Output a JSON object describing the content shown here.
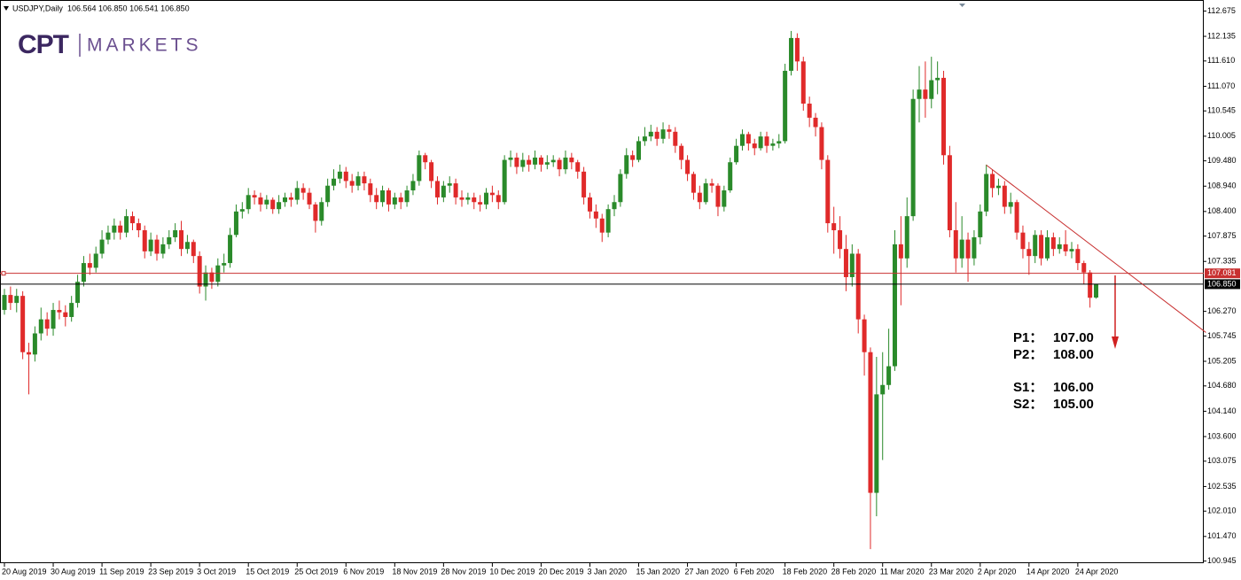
{
  "chart_data": {
    "type": "candlestick",
    "header": {
      "symbol": "USDJPY,Daily",
      "quote": "106.564 106.850 106.541 106.850"
    },
    "logo": {
      "mark": "CPT",
      "text": "MARKETS"
    },
    "up_color": "#2a8a2a",
    "down_color": "#e02a2a",
    "categories": [
      "20 Aug 2019",
      null,
      null,
      null,
      null,
      null,
      null,
      null,
      "30 Aug 2019",
      null,
      null,
      null,
      null,
      null,
      null,
      null,
      "11 Sep 2019",
      null,
      null,
      null,
      null,
      null,
      null,
      null,
      "23 Sep 2019",
      null,
      null,
      null,
      null,
      null,
      null,
      null,
      "3 Oct 2019",
      null,
      null,
      null,
      null,
      null,
      null,
      null,
      "15 Oct 2019",
      null,
      null,
      null,
      null,
      null,
      null,
      null,
      "25 Oct 2019",
      null,
      null,
      null,
      null,
      null,
      null,
      null,
      "6 Nov 2019",
      null,
      null,
      null,
      null,
      null,
      null,
      null,
      "18 Nov 2019",
      null,
      null,
      null,
      null,
      null,
      null,
      null,
      "28 Nov 2019",
      null,
      null,
      null,
      null,
      null,
      null,
      null,
      "10 Dec 2019",
      null,
      null,
      null,
      null,
      null,
      null,
      null,
      "20 Dec 2019",
      null,
      null,
      null,
      null,
      null,
      null,
      null,
      "3 Jan 2020",
      null,
      null,
      null,
      null,
      null,
      null,
      null,
      "15 Jan 2020",
      null,
      null,
      null,
      null,
      null,
      null,
      null,
      "27 Jan 2020",
      null,
      null,
      null,
      null,
      null,
      null,
      null,
      "6 Feb 2020",
      null,
      null,
      null,
      null,
      null,
      null,
      null,
      "18 Feb 2020",
      null,
      null,
      null,
      null,
      null,
      null,
      null,
      "28 Feb 2020",
      null,
      null,
      null,
      null,
      null,
      null,
      null,
      "11 Mar 2020",
      null,
      null,
      null,
      null,
      null,
      null,
      null,
      "23 Mar 2020",
      null,
      null,
      null,
      null,
      null,
      null,
      null,
      "2 Apr 2020",
      null,
      null,
      null,
      null,
      null,
      null,
      null,
      "14 Apr 2020",
      null,
      null,
      null,
      null,
      null,
      null,
      null,
      "24 Apr 2020",
      null,
      null,
      null
    ],
    "open": [
      106.3,
      106.62,
      106.45,
      106.6,
      105.4,
      105.35,
      105.8,
      106.1,
      105.9,
      106.3,
      106.25,
      106.15,
      106.45,
      106.9,
      107.3,
      107.2,
      107.5,
      107.8,
      107.95,
      108.1,
      107.95,
      108.3,
      108.15,
      108.0,
      107.55,
      107.8,
      107.5,
      107.7,
      107.85,
      108.0,
      107.6,
      107.75,
      107.45,
      106.8,
      107.1,
      106.9,
      107.25,
      107.3,
      107.9,
      108.4,
      108.45,
      108.75,
      108.7,
      108.55,
      108.65,
      108.45,
      108.6,
      108.7,
      108.65,
      108.9,
      108.8,
      108.55,
      108.2,
      108.6,
      108.95,
      109.1,
      109.25,
      109.05,
      108.95,
      109.15,
      109.0,
      108.75,
      108.6,
      108.85,
      108.55,
      108.7,
      108.6,
      108.85,
      109.05,
      109.6,
      109.45,
      109.05,
      108.7,
      108.95,
      109.0,
      108.7,
      108.65,
      108.7,
      108.6,
      108.55,
      108.8,
      108.75,
      108.6,
      109.5,
      109.55,
      109.35,
      109.5,
      109.4,
      109.55,
      109.4,
      109.45,
      109.5,
      109.3,
      109.55,
      109.45,
      109.25,
      108.7,
      108.4,
      108.25,
      107.95,
      108.45,
      108.6,
      109.2,
      109.6,
      109.5,
      109.9,
      110.0,
      110.1,
      109.95,
      110.15,
      110.1,
      109.8,
      109.5,
      109.2,
      108.8,
      108.6,
      109.0,
      108.95,
      108.5,
      108.85,
      109.45,
      109.8,
      110.05,
      109.85,
      109.75,
      110.0,
      109.8,
      109.85,
      109.9,
      111.4,
      112.1,
      111.6,
      110.7,
      110.4,
      110.2,
      109.5,
      108.15,
      108.0,
      107.6,
      107.0,
      107.5,
      106.1,
      105.4,
      102.4,
      104.5,
      104.7,
      105.1,
      107.7,
      107.4,
      108.3,
      110.8,
      111.0,
      110.8,
      111.2,
      111.25,
      109.6,
      108.0,
      107.4,
      107.8,
      107.4,
      107.85,
      108.4,
      109.2,
      108.9,
      108.95,
      108.5,
      108.6,
      107.95,
      107.6,
      107.45,
      107.9,
      107.4,
      107.85,
      107.6,
      107.7,
      107.55,
      107.6,
      107.3,
      107.1,
      106.564
    ],
    "high": [
      106.75,
      106.8,
      106.75,
      106.7,
      105.6,
      105.95,
      106.35,
      106.25,
      106.45,
      106.5,
      106.4,
      106.6,
      107.05,
      107.45,
      107.5,
      107.65,
      108.0,
      108.1,
      108.25,
      108.2,
      108.45,
      108.4,
      108.25,
      108.1,
      107.95,
      107.9,
      107.85,
      108.0,
      108.15,
      108.2,
      107.9,
      107.8,
      107.55,
      107.25,
      107.2,
      107.4,
      107.5,
      108.05,
      108.55,
      108.6,
      108.9,
      108.85,
      108.8,
      108.75,
      108.7,
      108.75,
      108.8,
      108.8,
      109.05,
      109.0,
      108.9,
      108.6,
      108.7,
      109.1,
      109.3,
      109.4,
      109.35,
      109.2,
      109.25,
      109.25,
      109.1,
      108.9,
      108.95,
      108.9,
      108.8,
      108.8,
      108.95,
      109.2,
      109.7,
      109.65,
      109.5,
      109.15,
      109.05,
      109.15,
      109.1,
      108.85,
      108.8,
      108.8,
      108.75,
      108.9,
      108.95,
      108.85,
      109.6,
      109.7,
      109.65,
      109.65,
      109.6,
      109.7,
      109.6,
      109.6,
      109.6,
      109.55,
      109.7,
      109.65,
      109.5,
      109.35,
      108.8,
      108.55,
      108.35,
      108.55,
      108.75,
      109.3,
      109.75,
      109.7,
      110.0,
      110.2,
      110.25,
      110.2,
      110.3,
      110.25,
      110.2,
      109.85,
      109.6,
      109.25,
      108.95,
      109.1,
      109.1,
      109.0,
      108.95,
      109.55,
      109.95,
      110.15,
      110.1,
      109.95,
      110.1,
      110.1,
      109.95,
      110.05,
      111.55,
      112.25,
      112.2,
      111.7,
      110.85,
      110.5,
      110.3,
      109.6,
      108.5,
      108.3,
      107.9,
      107.7,
      107.6,
      106.2,
      105.5,
      105.3,
      105.4,
      105.9,
      108.0,
      108.3,
      108.7,
      111.0,
      111.5,
      111.6,
      111.7,
      111.6,
      111.4,
      109.8,
      108.6,
      108.3,
      107.95,
      108.0,
      108.55,
      109.4,
      109.3,
      109.1,
      109.05,
      108.8,
      108.65,
      108.1,
      107.75,
      108.0,
      108.0,
      108.0,
      107.95,
      107.85,
      108.0,
      107.75,
      107.7,
      107.35,
      107.15,
      106.85
    ],
    "low": [
      106.2,
      106.3,
      106.25,
      105.25,
      104.5,
      105.2,
      105.65,
      105.75,
      105.75,
      106.1,
      105.95,
      106.05,
      106.35,
      106.8,
      107.05,
      107.1,
      107.4,
      107.7,
      107.8,
      107.8,
      107.85,
      108.0,
      107.85,
      107.4,
      107.45,
      107.35,
      107.4,
      107.6,
      107.75,
      107.45,
      107.5,
      107.3,
      106.65,
      106.5,
      106.75,
      106.8,
      107.1,
      107.2,
      107.85,
      108.25,
      108.35,
      108.55,
      108.4,
      108.45,
      108.35,
      108.35,
      108.5,
      108.5,
      108.55,
      108.65,
      108.45,
      107.95,
      108.1,
      108.5,
      108.85,
      109.0,
      108.9,
      108.8,
      108.85,
      108.85,
      108.6,
      108.45,
      108.5,
      108.4,
      108.45,
      108.45,
      108.5,
      108.75,
      108.95,
      109.3,
      108.9,
      108.55,
      108.6,
      108.8,
      108.55,
      108.5,
      108.55,
      108.45,
      108.4,
      108.45,
      108.6,
      108.45,
      108.55,
      109.35,
      109.2,
      109.25,
      109.25,
      109.3,
      109.25,
      109.3,
      109.35,
      109.15,
      109.2,
      109.3,
      109.1,
      108.55,
      108.25,
      108.05,
      107.75,
      107.85,
      108.3,
      108.5,
      109.1,
      109.35,
      109.45,
      109.8,
      109.9,
      109.8,
      109.85,
      109.95,
      109.65,
      109.3,
      109.05,
      108.65,
      108.45,
      108.55,
      108.8,
      108.3,
      108.4,
      108.8,
      109.4,
      109.7,
      109.7,
      109.6,
      109.7,
      109.65,
      109.7,
      109.75,
      109.85,
      111.3,
      111.4,
      110.55,
      110.2,
      110.0,
      109.3,
      107.95,
      107.5,
      107.4,
      106.7,
      106.8,
      105.8,
      104.9,
      101.2,
      101.9,
      103.1,
      104.6,
      105.0,
      106.4,
      107.2,
      108.2,
      110.3,
      110.4,
      110.6,
      110.9,
      109.4,
      107.85,
      107.1,
      107.2,
      106.9,
      107.25,
      107.7,
      108.3,
      108.7,
      108.75,
      108.35,
      108.35,
      107.8,
      107.4,
      107.05,
      107.3,
      107.25,
      107.35,
      107.45,
      107.5,
      107.45,
      107.4,
      107.15,
      106.85,
      106.35,
      106.541
    ],
    "close": [
      106.62,
      106.45,
      106.6,
      105.4,
      105.35,
      105.8,
      106.1,
      105.9,
      106.3,
      106.25,
      106.15,
      106.45,
      106.9,
      107.3,
      107.2,
      107.5,
      107.8,
      107.95,
      108.1,
      107.95,
      108.3,
      108.15,
      108.0,
      107.55,
      107.8,
      107.5,
      107.7,
      107.85,
      108.0,
      107.6,
      107.75,
      107.45,
      106.8,
      107.1,
      106.9,
      107.25,
      107.3,
      107.9,
      108.4,
      108.45,
      108.75,
      108.7,
      108.55,
      108.65,
      108.45,
      108.6,
      108.7,
      108.65,
      108.9,
      108.8,
      108.55,
      108.2,
      108.6,
      108.95,
      109.1,
      109.25,
      109.05,
      108.95,
      109.15,
      109.0,
      108.75,
      108.6,
      108.85,
      108.55,
      108.7,
      108.6,
      108.85,
      109.05,
      109.6,
      109.45,
      109.05,
      108.7,
      108.95,
      109.0,
      108.7,
      108.65,
      108.7,
      108.6,
      108.55,
      108.8,
      108.75,
      108.6,
      109.5,
      109.55,
      109.35,
      109.5,
      109.4,
      109.55,
      109.4,
      109.45,
      109.5,
      109.3,
      109.55,
      109.45,
      109.25,
      108.7,
      108.4,
      108.25,
      107.95,
      108.45,
      108.6,
      109.2,
      109.6,
      109.5,
      109.9,
      110.0,
      110.1,
      109.95,
      110.15,
      110.1,
      109.8,
      109.5,
      109.2,
      108.8,
      108.6,
      109.0,
      108.95,
      108.5,
      108.85,
      109.45,
      109.8,
      110.05,
      109.85,
      109.75,
      110.0,
      109.8,
      109.85,
      109.9,
      111.4,
      112.1,
      111.6,
      110.7,
      110.4,
      110.2,
      109.5,
      108.15,
      108.0,
      107.6,
      107.0,
      107.5,
      106.1,
      105.4,
      102.4,
      104.5,
      104.7,
      105.1,
      107.7,
      107.4,
      108.3,
      110.8,
      111.0,
      110.8,
      111.2,
      111.25,
      109.6,
      108.0,
      107.4,
      107.8,
      107.4,
      107.85,
      108.4,
      109.2,
      108.9,
      108.95,
      108.5,
      108.6,
      107.95,
      107.6,
      107.45,
      107.9,
      107.4,
      107.85,
      107.6,
      107.7,
      107.55,
      107.6,
      107.3,
      107.1,
      106.56,
      106.85
    ],
    "ylim": [
      100.9,
      112.91
    ],
    "yticks": [
      112.675,
      112.135,
      {
        "value": 111.61,
        "label": "111.610"
      },
      {
        "value": 111.07,
        "label": "111.070"
      },
      110.545,
      110.005,
      {
        "value": 109.48,
        "label": "109.480"
      },
      {
        "value": 108.94,
        "label": "108.940"
      },
      {
        "value": 108.4,
        "label": "108.400"
      },
      107.875,
      107.335,
      {
        "value": 106.27,
        "label": "106.270"
      },
      105.745,
      105.205,
      {
        "value": 104.68,
        "label": "104.680"
      },
      {
        "value": 104.14,
        "label": "104.140"
      },
      {
        "value": 103.6,
        "label": "103.600"
      },
      103.075,
      102.535,
      {
        "value": 102.01,
        "label": "102.010"
      },
      {
        "value": 101.47,
        "label": "101.470"
      },
      100.945
    ],
    "price_lines": [
      {
        "price": 107.081,
        "color": "#c83030"
      },
      {
        "price": {
          "value": 106.85,
          "label": "106.850"
        },
        "color": "#000000"
      }
    ],
    "trendline": {
      "x": [
        161,
        197
      ],
      "y": [
        109.39,
        105.82
      ],
      "color": "#c83030"
    },
    "annotations": [
      {
        "name": "P1：",
        "text": "107.00"
      },
      {
        "name": "P2：",
        "text": "108.00"
      },
      {
        "name": "S1：",
        "text": "106.00"
      },
      {
        "name": "S2：",
        "text": "105.00"
      }
    ]
  }
}
